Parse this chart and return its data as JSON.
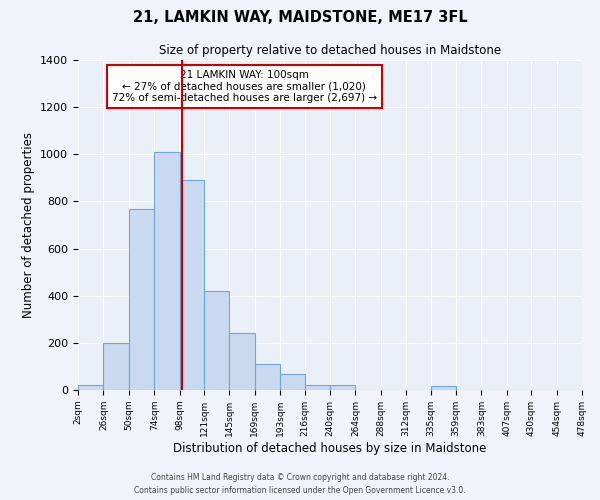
{
  "title": "21, LAMKIN WAY, MAIDSTONE, ME17 3FL",
  "subtitle": "Size of property relative to detached houses in Maidstone",
  "xlabel": "Distribution of detached houses by size in Maidstone",
  "ylabel": "Number of detached properties",
  "bin_edges": [
    2,
    26,
    50,
    74,
    98,
    121,
    145,
    169,
    193,
    216,
    240,
    264,
    288,
    312,
    335,
    359,
    383,
    407,
    430,
    454,
    478
  ],
  "bin_counts": [
    20,
    200,
    770,
    1010,
    890,
    420,
    240,
    110,
    70,
    20,
    20,
    0,
    0,
    0,
    15,
    0,
    0,
    0,
    0,
    0
  ],
  "bar_face_color": "#c9d9f0",
  "bar_edge_color": "#6fa8d8",
  "background_color": "#eaf0f8",
  "fig_background_color": "#f0f4fa",
  "grid_color": "#ffffff",
  "vline_x": 100,
  "vline_color": "#cc0000",
  "annotation_text": "21 LAMKIN WAY: 100sqm\n← 27% of detached houses are smaller (1,020)\n72% of semi-detached houses are larger (2,697) →",
  "annotation_box_edgecolor": "#cc0000",
  "annotation_box_facecolor": "#ffffff",
  "ylim": [
    0,
    1400
  ],
  "yticks": [
    0,
    200,
    400,
    600,
    800,
    1000,
    1200,
    1400
  ],
  "tick_labels": [
    "2sqm",
    "26sqm",
    "50sqm",
    "74sqm",
    "98sqm",
    "121sqm",
    "145sqm",
    "169sqm",
    "193sqm",
    "216sqm",
    "240sqm",
    "264sqm",
    "288sqm",
    "312sqm",
    "335sqm",
    "359sqm",
    "383sqm",
    "407sqm",
    "430sqm",
    "454sqm",
    "478sqm"
  ],
  "footer_line1": "Contains HM Land Registry data © Crown copyright and database right 2024.",
  "footer_line2": "Contains public sector information licensed under the Open Government Licence v3.0."
}
